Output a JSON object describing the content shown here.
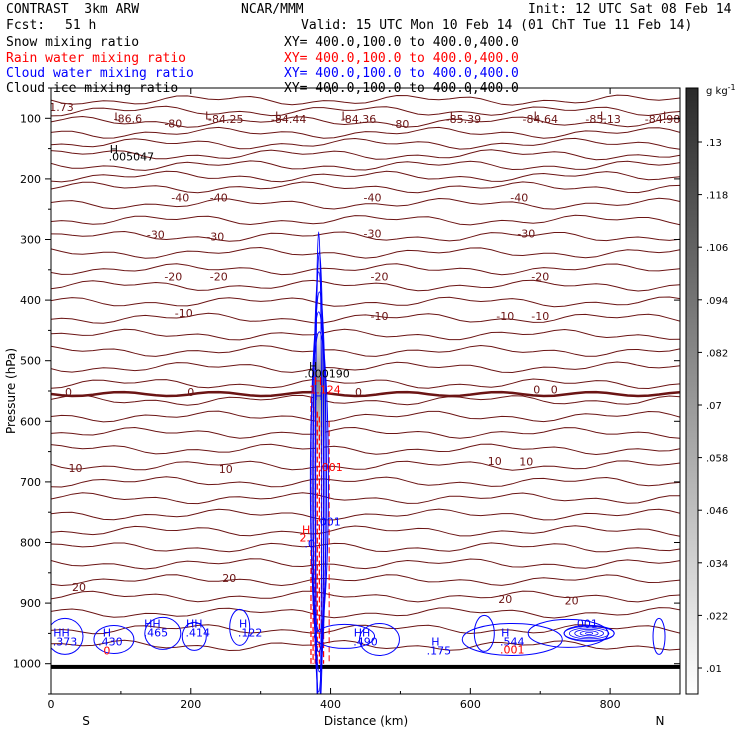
{
  "header": {
    "model": "CONTRAST  3km ARW",
    "center": "NCAR/MMM",
    "init": "Init: 12 UTC Sat 08 Feb 14",
    "fcst_label": "Fcst:",
    "fcst_value": "51 h",
    "valid": "Valid: 15 UTC Mon 10 Feb 14 (01 ChT Tue 11 Feb 14)",
    "fields": [
      {
        "name": "Snow mixing ratio",
        "xy": "XY= 400.0,100.0 to 400.0,400.0",
        "color": "#000000"
      },
      {
        "name": "Rain water mixing ratio",
        "xy": "XY= 400.0,100.0 to 400.0,400.0",
        "color": "#ff0000"
      },
      {
        "name": "Cloud water mixing ratio",
        "xy": "XY= 400.0,100.0 to 400.0,400.0",
        "color": "#0000ff"
      },
      {
        "name": "Cloud ice mixing ratio",
        "xy": "XY= 400.0,100.0 to 400.0,400.0",
        "color": "#000000"
      }
    ]
  },
  "chart_data": {
    "type": "cross-section",
    "xlabel": "Distance (km)",
    "ylabel": "Pressure (hPa)",
    "xlim": [
      0,
      900
    ],
    "ylim": [
      1050,
      50
    ],
    "x_ticks": [
      "0",
      "200",
      "400",
      "600",
      "800"
    ],
    "y_ticks": [
      "100",
      "200",
      "300",
      "400",
      "500",
      "600",
      "700",
      "800",
      "900",
      "1000"
    ],
    "x_end_labels": {
      "left": "S",
      "right": "N"
    },
    "colorbar": {
      "unit": "g kg",
      "unit_exp": "-1",
      "ticks": [
        ".13",
        ".118",
        ".106",
        ".094",
        ".082",
        ".07",
        ".058",
        ".046",
        ".034",
        ".022",
        ".01"
      ]
    },
    "temperature_labels": [
      {
        "x": 15,
        "p": 88,
        "text": "1.73"
      },
      {
        "x": 95,
        "p": 104,
        "text": "L"
      },
      {
        "x": 110,
        "p": 107,
        "text": "-86.6"
      },
      {
        "x": 175,
        "p": 115,
        "text": "-80"
      },
      {
        "x": 225,
        "p": 102,
        "text": "L"
      },
      {
        "x": 250,
        "p": 108,
        "text": "-84.25"
      },
      {
        "x": 325,
        "p": 102,
        "text": "L"
      },
      {
        "x": 340,
        "p": 108,
        "text": "-84.44"
      },
      {
        "x": 420,
        "p": 102,
        "text": "L"
      },
      {
        "x": 440,
        "p": 108,
        "text": "-84.36"
      },
      {
        "x": 500,
        "p": 116,
        "text": "-80"
      },
      {
        "x": 575,
        "p": 102,
        "text": "L"
      },
      {
        "x": 590,
        "p": 108,
        "text": "-85.39"
      },
      {
        "x": 695,
        "p": 102,
        "text": "L"
      },
      {
        "x": 700,
        "p": 108,
        "text": "-84.64"
      },
      {
        "x": 790,
        "p": 102,
        "text": "L"
      },
      {
        "x": 790,
        "p": 108,
        "text": "-85.13"
      },
      {
        "x": 880,
        "p": 102,
        "text": "L"
      },
      {
        "x": 875,
        "p": 108,
        "text": "-84.98"
      },
      {
        "x": 185,
        "p": 237,
        "text": "-40"
      },
      {
        "x": 240,
        "p": 237,
        "text": "-40"
      },
      {
        "x": 460,
        "p": 237,
        "text": "-40"
      },
      {
        "x": 670,
        "p": 237,
        "text": "-40"
      },
      {
        "x": 150,
        "p": 298,
        "text": "-30"
      },
      {
        "x": 235,
        "p": 302,
        "text": "-30"
      },
      {
        "x": 460,
        "p": 297,
        "text": "-30"
      },
      {
        "x": 680,
        "p": 297,
        "text": "-30"
      },
      {
        "x": 175,
        "p": 368,
        "text": "-20"
      },
      {
        "x": 240,
        "p": 368,
        "text": "-20"
      },
      {
        "x": 470,
        "p": 368,
        "text": "-20"
      },
      {
        "x": 700,
        "p": 368,
        "text": "-20"
      },
      {
        "x": 190,
        "p": 428,
        "text": "-10"
      },
      {
        "x": 470,
        "p": 433,
        "text": "-10"
      },
      {
        "x": 650,
        "p": 433,
        "text": "-10"
      },
      {
        "x": 700,
        "p": 433,
        "text": "-10"
      },
      {
        "x": 25,
        "p": 558,
        "text": "0"
      },
      {
        "x": 200,
        "p": 558,
        "text": "0"
      },
      {
        "x": 440,
        "p": 558,
        "text": "0"
      },
      {
        "x": 695,
        "p": 554,
        "text": "0"
      },
      {
        "x": 720,
        "p": 554,
        "text": "0"
      },
      {
        "x": 35,
        "p": 684,
        "text": "10"
      },
      {
        "x": 250,
        "p": 685,
        "text": "10"
      },
      {
        "x": 635,
        "p": 672,
        "text": "10"
      },
      {
        "x": 680,
        "p": 673,
        "text": "10"
      },
      {
        "x": 40,
        "p": 880,
        "text": "20"
      },
      {
        "x": 255,
        "p": 865,
        "text": "20"
      },
      {
        "x": 650,
        "p": 900,
        "text": "20"
      },
      {
        "x": 745,
        "p": 902,
        "text": "20"
      }
    ],
    "snow_labels": [
      {
        "x": 90,
        "p": 157,
        "text": "H"
      },
      {
        "x": 115,
        "p": 170,
        "text": ".005047"
      },
      {
        "x": 375,
        "p": 515,
        "text": "H"
      },
      {
        "x": 395,
        "p": 528,
        "text": ".000190"
      }
    ],
    "rain_labels": [
      {
        "x": 382,
        "p": 540,
        "text": "H"
      },
      {
        "x": 392,
        "p": 554,
        "text": "1.124"
      },
      {
        "x": 400,
        "p": 682,
        "text": ".001"
      },
      {
        "x": 365,
        "p": 785,
        "text": "H"
      },
      {
        "x": 363,
        "p": 798,
        "text": "2."
      },
      {
        "x": 80,
        "p": 985,
        "text": "0"
      },
      {
        "x": 660,
        "p": 983,
        "text": ".001"
      }
    ],
    "cloud_water_labels": [
      {
        "x": 383,
        "p": 565,
        "text": "H"
      },
      {
        "x": 397,
        "p": 772,
        "text": ".001"
      },
      {
        "x": 370,
        "p": 808,
        "text": ".0"
      },
      {
        "x": 15,
        "p": 955,
        "text": "HH"
      },
      {
        "x": 20,
        "p": 970,
        "text": ".373"
      },
      {
        "x": 80,
        "p": 955,
        "text": "H"
      },
      {
        "x": 85,
        "p": 970,
        "text": ".430"
      },
      {
        "x": 145,
        "p": 940,
        "text": "HH"
      },
      {
        "x": 150,
        "p": 955,
        "text": ".465"
      },
      {
        "x": 205,
        "p": 940,
        "text": "HH"
      },
      {
        "x": 210,
        "p": 955,
        "text": ".414"
      },
      {
        "x": 275,
        "p": 940,
        "text": "H"
      },
      {
        "x": 285,
        "p": 955,
        "text": ".122"
      },
      {
        "x": 445,
        "p": 955,
        "text": "HH"
      },
      {
        "x": 450,
        "p": 970,
        "text": ".490"
      },
      {
        "x": 550,
        "p": 970,
        "text": "H"
      },
      {
        "x": 555,
        "p": 985,
        "text": ".175"
      },
      {
        "x": 650,
        "p": 955,
        "text": "H"
      },
      {
        "x": 660,
        "p": 970,
        "text": ".544"
      },
      {
        "x": 765,
        "p": 940,
        "text": ".001"
      }
    ]
  }
}
